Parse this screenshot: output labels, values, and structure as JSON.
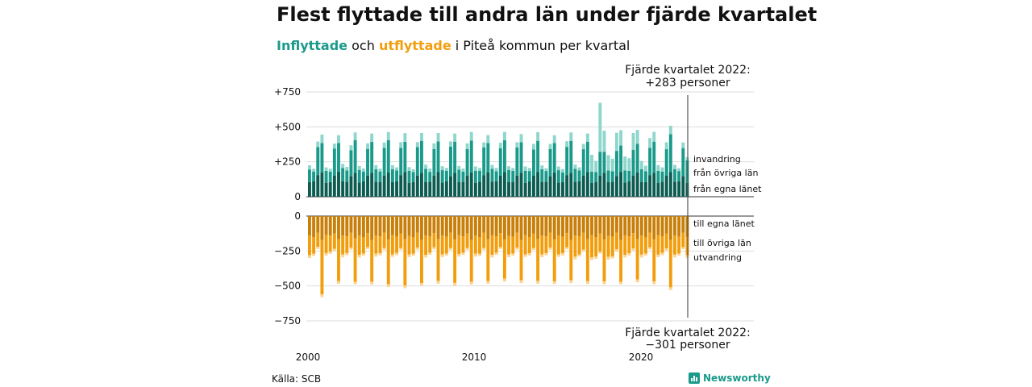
{
  "header": {
    "title": "Flest flyttade till andra län under fjärde kvartalet",
    "subtitle_in": "Inflyttade",
    "subtitle_mid": " och ",
    "subtitle_out": "utflyttade",
    "subtitle_rest": " i Piteå kommun per kvartal"
  },
  "footer": {
    "source": "Källa: SCB",
    "brand": "Newsworthy"
  },
  "colors": {
    "in_own": "#0d5c52",
    "in_other": "#1a9a8a",
    "in_abroad": "#8fd6cc",
    "out_own": "#c9800a",
    "out_other": "#f29e0c",
    "out_abroad": "#fbd493",
    "grid": "#dddddd",
    "axis": "#333333"
  },
  "chart_data": {
    "type": "bar",
    "title": "Flest flyttade till andra län under fjärde kvartalet",
    "subtitle": "Inflyttade och utflyttade i Piteå kommun per kvartal",
    "x_ticks": [
      "2000",
      "2010",
      "2020"
    ],
    "x_range": [
      "2000 Q1",
      "2022 Q4"
    ],
    "y_ticks_in": [
      "+750",
      "+500",
      "+250",
      "0"
    ],
    "y_ticks_out": [
      "0",
      "−250",
      "−500",
      "−750"
    ],
    "ylim_in": [
      0,
      750
    ],
    "ylim_out": [
      -750,
      0
    ],
    "in_labels": [
      "invandring",
      "från övriga län",
      "från egna länet"
    ],
    "out_labels": [
      "till egna länet",
      "till övriga län",
      "utvandring"
    ],
    "annotation_top": [
      "Fjärde kvartalet 2022:",
      "+283 personer"
    ],
    "annotation_bottom": [
      "Fjärde kvartalet 2022:",
      "−301 personer"
    ],
    "legend": "labels at right end of bars",
    "grid": true,
    "quarters": [
      "Q1",
      "Q2",
      "Q3",
      "Q4"
    ],
    "inflow": {
      "own": [
        [
          105,
          110,
          155,
          175
        ],
        [
          100,
          105,
          150,
          180
        ],
        [
          110,
          108,
          148,
          170
        ],
        [
          102,
          110,
          152,
          172
        ],
        [
          108,
          106,
          150,
          175
        ],
        [
          104,
          110,
          155,
          178
        ],
        [
          100,
          104,
          150,
          170
        ],
        [
          106,
          108,
          152,
          176
        ],
        [
          102,
          110,
          148,
          172
        ],
        [
          104,
          106,
          150,
          174
        ],
        [
          100,
          108,
          155,
          175
        ],
        [
          108,
          110,
          150,
          178
        ],
        [
          104,
          106,
          152,
          172
        ],
        [
          100,
          110,
          150,
          176
        ],
        [
          106,
          108,
          148,
          174
        ],
        [
          102,
          104,
          155,
          170
        ],
        [
          108,
          110,
          150,
          178
        ],
        [
          100,
          106,
          152,
          172
        ],
        [
          104,
          108,
          148,
          176
        ],
        [
          102,
          110,
          150,
          174
        ],
        [
          106,
          104,
          155,
          172
        ],
        [
          100,
          108,
          150,
          178
        ],
        [
          108,
          110,
          148,
          100
        ]
      ],
      "other": [
        [
          90,
          70,
          200,
          210
        ],
        [
          85,
          75,
          195,
          205
        ],
        [
          95,
          80,
          185,
          235
        ],
        [
          90,
          70,
          190,
          220
        ],
        [
          88,
          75,
          200,
          230
        ],
        [
          92,
          78,
          195,
          215
        ],
        [
          86,
          72,
          205,
          230
        ],
        [
          94,
          70,
          190,
          220
        ],
        [
          88,
          76,
          210,
          222
        ],
        [
          90,
          74,
          192,
          228
        ],
        [
          86,
          78,
          198,
          210
        ],
        [
          92,
          72,
          196,
          226
        ],
        [
          88,
          80,
          200,
          218
        ],
        [
          86,
          74,
          188,
          224
        ],
        [
          90,
          76,
          194,
          210
        ],
        [
          88,
          70,
          202,
          230
        ],
        [
          92,
          78,
          190,
          216
        ],
        [
          80,
          70,
          170,
          150
        ],
        [
          84,
          74,
          180,
          190
        ],
        [
          86,
          76,
          186,
          204
        ],
        [
          90,
          78,
          194,
          222
        ],
        [
          86,
          72,
          190,
          270
        ],
        [
          90,
          74,
          200,
          160
        ]
      ],
      "abroad": [
        [
          30,
          20,
          40,
          60
        ],
        [
          25,
          20,
          35,
          55
        ],
        [
          30,
          25,
          35,
          55
        ],
        [
          28,
          22,
          40,
          60
        ],
        [
          30,
          20,
          38,
          58
        ],
        [
          30,
          22,
          40,
          62
        ],
        [
          26,
          20,
          36,
          56
        ],
        [
          30,
          24,
          40,
          60
        ],
        [
          28,
          20,
          38,
          58
        ],
        [
          26,
          22,
          40,
          62
        ],
        [
          30,
          20,
          36,
          56
        ],
        [
          28,
          24,
          40,
          60
        ],
        [
          26,
          20,
          38,
          58
        ],
        [
          30,
          22,
          40,
          62
        ],
        [
          28,
          20,
          36,
          56
        ],
        [
          26,
          24,
          40,
          60
        ],
        [
          30,
          22,
          38,
          58
        ],
        [
          120,
          80,
          350,
          150
        ],
        [
          110,
          90,
          130,
          110
        ],
        [
          100,
          90,
          120,
          100
        ],
        [
          60,
          40,
          70,
          70
        ],
        [
          40,
          30,
          50,
          60
        ],
        [
          30,
          20,
          40,
          23
        ]
      ]
    },
    "outflow": {
      "own": [
        [
          -140,
          -150,
          -120,
          -170
        ],
        [
          -135,
          -140,
          -125,
          -165
        ],
        [
          -140,
          -145,
          -120,
          -160
        ],
        [
          -138,
          -150,
          -122,
          -170
        ],
        [
          -140,
          -146,
          -118,
          -168
        ],
        [
          -136,
          -148,
          -124,
          -166
        ],
        [
          -142,
          -150,
          -120,
          -170
        ],
        [
          -138,
          -144,
          -122,
          -164
        ],
        [
          -140,
          -148,
          -120,
          -168
        ],
        [
          -136,
          -146,
          -124,
          -170
        ],
        [
          -140,
          -150,
          -118,
          -166
        ],
        [
          -138,
          -144,
          -122,
          -168
        ],
        [
          -142,
          -148,
          -120,
          -170
        ],
        [
          -136,
          -150,
          -124,
          -164
        ],
        [
          -140,
          -146,
          -118,
          -168
        ],
        [
          -138,
          -148,
          -122,
          -170
        ],
        [
          -140,
          -144,
          -120,
          -166
        ],
        [
          -136,
          -150,
          -124,
          -168
        ],
        [
          -142,
          -148,
          -118,
          -170
        ],
        [
          -138,
          -146,
          -122,
          -164
        ],
        [
          -140,
          -150,
          -120,
          -168
        ],
        [
          -136,
          -144,
          -124,
          -170
        ],
        [
          -140,
          -148,
          -118,
          -150
        ]
      ],
      "other": [
        [
          -140,
          -120,
          -100,
          -390
        ],
        [
          -130,
          -115,
          -110,
          -300
        ],
        [
          -135,
          -120,
          -105,
          -310
        ],
        [
          -140,
          -118,
          -100,
          -300
        ],
        [
          -130,
          -120,
          -110,
          -320
        ],
        [
          -138,
          -116,
          -104,
          -330
        ],
        [
          -132,
          -120,
          -106,
          -310
        ],
        [
          -140,
          -118,
          -102,
          -300
        ],
        [
          -134,
          -120,
          -108,
          -310
        ],
        [
          -136,
          -116,
          -104,
          -300
        ],
        [
          -130,
          -120,
          -110,
          -300
        ],
        [
          -140,
          -118,
          -100,
          -280
        ],
        [
          -132,
          -120,
          -106,
          -290
        ],
        [
          -138,
          -116,
          -104,
          -300
        ],
        [
          -134,
          -120,
          -108,
          -300
        ],
        [
          -136,
          -118,
          -102,
          -290
        ],
        [
          -150,
          -130,
          -120,
          -300
        ],
        [
          -160,
          -140,
          -130,
          -300
        ],
        [
          -150,
          -140,
          -120,
          -300
        ],
        [
          -140,
          -120,
          -110,
          -290
        ],
        [
          -136,
          -118,
          -104,
          -300
        ],
        [
          -140,
          -120,
          -108,
          -340
        ],
        [
          -136,
          -120,
          -104,
          -130
        ]
      ],
      "abroad": [
        [
          -20,
          -15,
          -15,
          -20
        ],
        [
          -18,
          -16,
          -14,
          -20
        ],
        [
          -20,
          -15,
          -15,
          -18
        ],
        [
          -18,
          -16,
          -14,
          -20
        ],
        [
          -20,
          -15,
          -15,
          -20
        ],
        [
          -18,
          -16,
          -14,
          -20
        ],
        [
          -20,
          -15,
          -15,
          -18
        ],
        [
          -18,
          -16,
          -14,
          -20
        ],
        [
          -20,
          -15,
          -15,
          -20
        ],
        [
          -18,
          -16,
          -14,
          -20
        ],
        [
          -20,
          -15,
          -15,
          -18
        ],
        [
          -18,
          -16,
          -14,
          -20
        ],
        [
          -20,
          -15,
          -15,
          -20
        ],
        [
          -18,
          -16,
          -14,
          -20
        ],
        [
          -20,
          -15,
          -15,
          -18
        ],
        [
          -18,
          -16,
          -14,
          -20
        ],
        [
          -20,
          -15,
          -15,
          -20
        ],
        [
          -18,
          -16,
          -14,
          -20
        ],
        [
          -20,
          -15,
          -15,
          -18
        ],
        [
          -18,
          -16,
          -14,
          -20
        ],
        [
          -20,
          -15,
          -15,
          -20
        ],
        [
          -18,
          -16,
          -14,
          -20
        ],
        [
          -20,
          -15,
          -15,
          -21
        ]
      ]
    }
  }
}
